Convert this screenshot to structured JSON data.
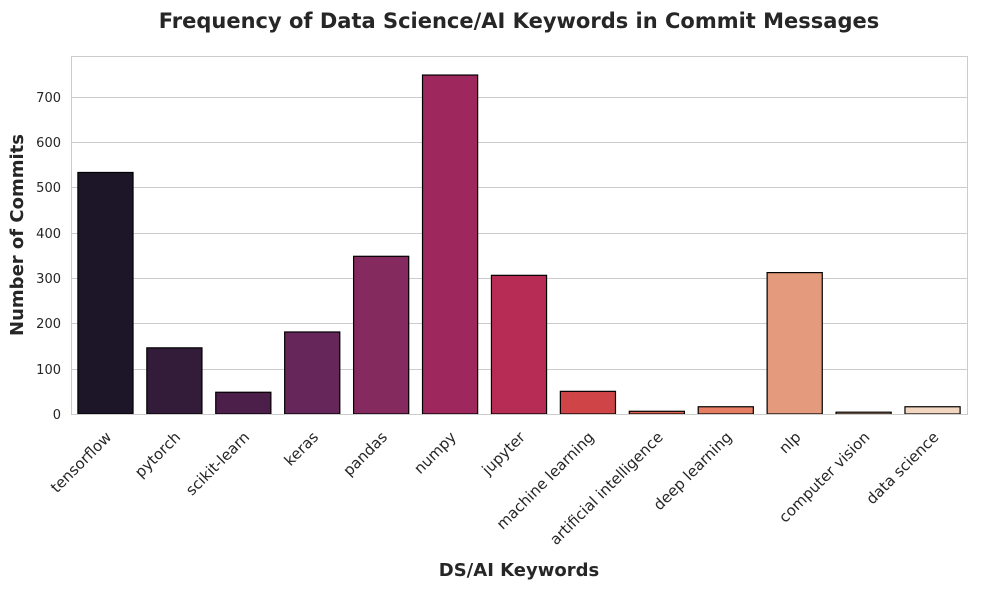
{
  "chart_data": {
    "type": "bar",
    "title": "Frequency of Data Science/AI Keywords in Commit Messages",
    "xlabel": "DS/AI Keywords",
    "ylabel": "Number of Commits",
    "categories": [
      "tensorflow",
      "pytorch",
      "scikit-learn",
      "keras",
      "pandas",
      "numpy",
      "jupyter",
      "machine learning",
      "artificial intelligence",
      "deep learning",
      "nlp",
      "computer vision",
      "data science"
    ],
    "values": [
      533,
      146,
      48,
      181,
      348,
      748,
      306,
      50,
      6,
      16,
      312,
      4,
      16
    ],
    "colors": [
      "#1d1628",
      "#331c39",
      "#4c1f4b",
      "#66265a",
      "#842a5e",
      "#9e275d",
      "#b62c54",
      "#cf4446",
      "#df6252",
      "#e67e63",
      "#e49a7c",
      "#edb999",
      "#f1d6c2"
    ],
    "ylim": [
      0,
      790
    ],
    "yticks": [
      0,
      100,
      200,
      300,
      400,
      500,
      600,
      700
    ],
    "grid": true,
    "grid_axis": "y",
    "bar_edge_color": "#000000"
  }
}
